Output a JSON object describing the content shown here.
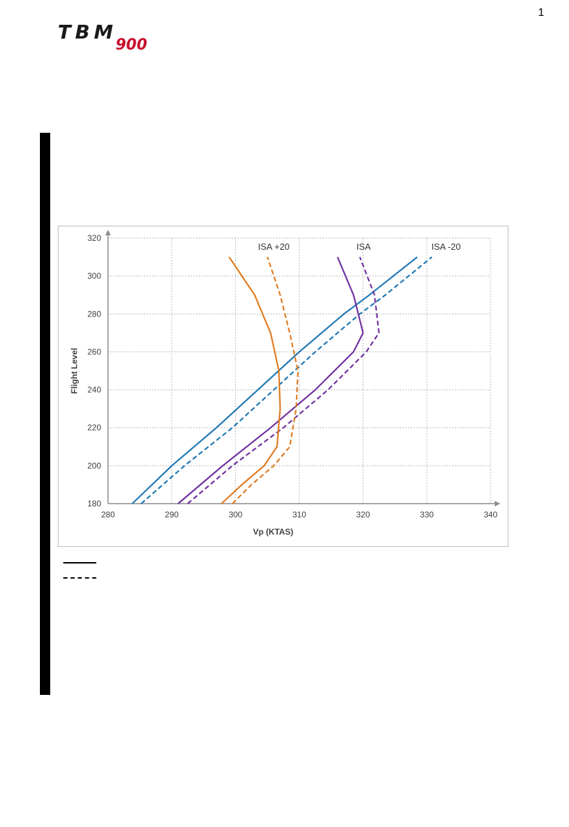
{
  "header": {
    "logo_text": "TBM",
    "logo_model": "900",
    "page_number": "1",
    "colors": {
      "logo_dark": "#1a1a1a",
      "logo_red": "#c8102e"
    }
  },
  "legend": {
    "items": [
      {
        "style": "solid",
        "label": ""
      },
      {
        "style": "dashed",
        "label": ""
      }
    ]
  },
  "chart_data": {
    "type": "line",
    "title": "",
    "xlabel": "Vp (KTAS)",
    "ylabel": "Flight Level",
    "xlim": [
      280,
      340
    ],
    "ylim": [
      180,
      320
    ],
    "xticks": [
      280,
      290,
      300,
      310,
      320,
      330,
      340
    ],
    "yticks": [
      180,
      200,
      220,
      240,
      260,
      280,
      300,
      320
    ],
    "grid": true,
    "annotations": [
      "ISA +20",
      "ISA",
      "ISA -20"
    ],
    "series": [
      {
        "name": "ISA -20",
        "color": "#1f77b4",
        "dash": false,
        "points": [
          [
            283.8,
            180
          ],
          [
            290,
            200
          ],
          [
            297,
            220
          ],
          [
            303.5,
            240
          ],
          [
            310,
            260
          ],
          [
            317,
            280
          ],
          [
            321,
            290
          ],
          [
            328.5,
            310
          ]
        ]
      },
      {
        "name": "ISA -20",
        "color": "#1f77b4",
        "dash": true,
        "points": [
          [
            285.2,
            180
          ],
          [
            292,
            200
          ],
          [
            299.5,
            220
          ],
          [
            306,
            240
          ],
          [
            312.5,
            260
          ],
          [
            319.5,
            280
          ],
          [
            323.5,
            290
          ],
          [
            330.8,
            310
          ]
        ]
      },
      {
        "name": "ISA",
        "color": "#7030a0",
        "dash": false,
        "points": [
          [
            291,
            180
          ],
          [
            298,
            200
          ],
          [
            305.5,
            220
          ],
          [
            312.5,
            240
          ],
          [
            318.5,
            260
          ],
          [
            320,
            270
          ],
          [
            318.5,
            290
          ],
          [
            316,
            310
          ]
        ]
      },
      {
        "name": "ISA",
        "color": "#7030a0",
        "dash": true,
        "points": [
          [
            292.5,
            180
          ],
          [
            299.5,
            200
          ],
          [
            307.5,
            220
          ],
          [
            314.5,
            240
          ],
          [
            320.5,
            260
          ],
          [
            322.5,
            270
          ],
          [
            321.8,
            290
          ],
          [
            319.5,
            310
          ]
        ]
      },
      {
        "name": "ISA +20",
        "color": "#e07b22",
        "dash": false,
        "points": [
          [
            297.8,
            180
          ],
          [
            301,
            190
          ],
          [
            304.5,
            200
          ],
          [
            306.5,
            210
          ],
          [
            307,
            230
          ],
          [
            306.8,
            250
          ],
          [
            305.5,
            270
          ],
          [
            303,
            290
          ],
          [
            299,
            310
          ]
        ]
      },
      {
        "name": "ISA +20",
        "color": "#e07b22",
        "dash": true,
        "points": [
          [
            299.5,
            180
          ],
          [
            302.5,
            190
          ],
          [
            306,
            200
          ],
          [
            308.5,
            210
          ],
          [
            309.5,
            230
          ],
          [
            309.8,
            250
          ],
          [
            308.5,
            270
          ],
          [
            307,
            290
          ],
          [
            305,
            310
          ]
        ]
      }
    ]
  }
}
